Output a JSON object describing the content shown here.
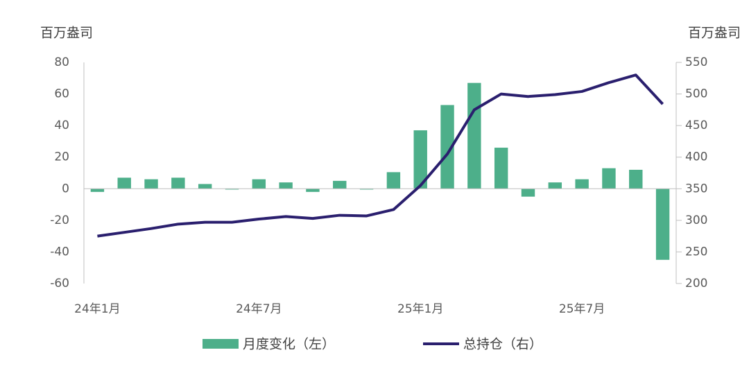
{
  "chart_data": {
    "type": "bar",
    "y_label": "百万盎司",
    "y2_label": "百万盎司",
    "categories": [
      "24年1月",
      null,
      null,
      null,
      null,
      null,
      "24年7月",
      null,
      null,
      null,
      null,
      null,
      "25年1月",
      null,
      null,
      null,
      null,
      null,
      "25年7月",
      null,
      null,
      null
    ],
    "series": [
      {
        "name": "月度变化（左）",
        "type": "bar",
        "color": "#4daf8a",
        "values": [
          -2,
          7,
          6,
          7,
          3,
          -0.5,
          6,
          4,
          -2,
          5,
          -0.5,
          10.5,
          37,
          53,
          67,
          26,
          -5,
          4,
          6,
          13,
          12,
          -45
        ]
      },
      {
        "name": "总持仓（右）",
        "type": "line",
        "axis": "y2",
        "color": "#2a1f6e",
        "values": [
          275,
          281,
          287,
          294,
          297,
          297,
          302,
          306,
          303,
          308,
          307,
          317,
          355,
          405,
          475,
          500,
          496,
          499,
          504,
          518,
          530,
          484
        ]
      }
    ],
    "ylim": [
      -60,
      80
    ],
    "yticks": [
      -60,
      -40,
      -20,
      0,
      20,
      40,
      60,
      80
    ],
    "y2lim": [
      200,
      550
    ],
    "y2ticks": [
      200,
      250,
      300,
      350,
      400,
      450,
      500,
      550
    ],
    "legend": "bottom"
  }
}
